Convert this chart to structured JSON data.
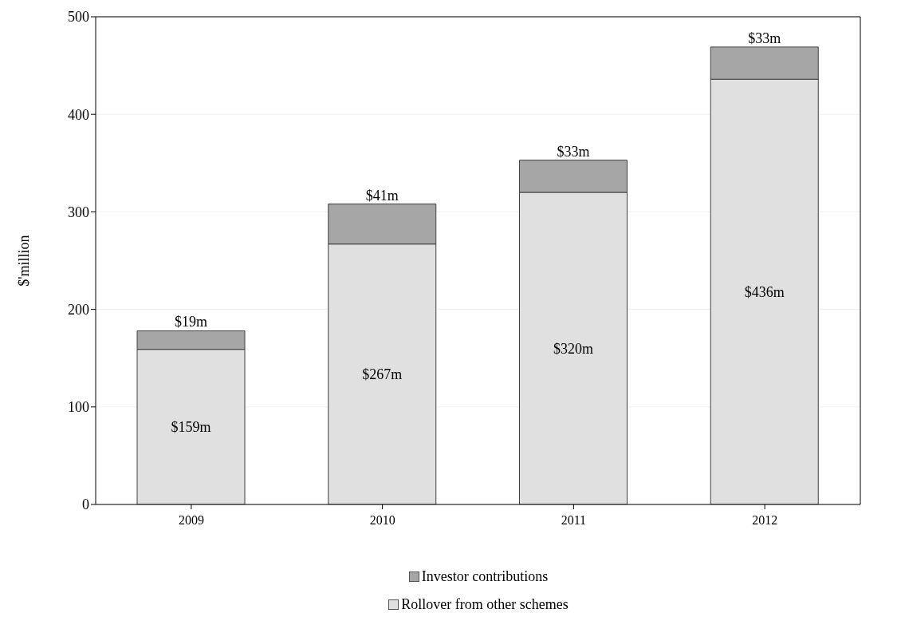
{
  "chart_data": {
    "type": "bar",
    "stacked": true,
    "ylabel": "$'million",
    "categories": [
      "2009",
      "2010",
      "2011",
      "2012"
    ],
    "series": [
      {
        "name": "Rollover from other schemes",
        "color": "#e0e0e0",
        "values": [
          159,
          267,
          320,
          436
        ],
        "value_labels": [
          "$159m",
          "$267m",
          "$320m",
          "$436m"
        ]
      },
      {
        "name": "Investor contributions",
        "color": "#a6a6a6",
        "values": [
          19,
          41,
          33,
          33
        ],
        "value_labels": [
          "$19m",
          "$41m",
          "$33m",
          "$33m"
        ]
      }
    ],
    "ylim": [
      0,
      500
    ],
    "yticks": [
      0,
      100,
      200,
      300,
      400,
      500
    ],
    "grid": "y",
    "legend": "bottom"
  }
}
